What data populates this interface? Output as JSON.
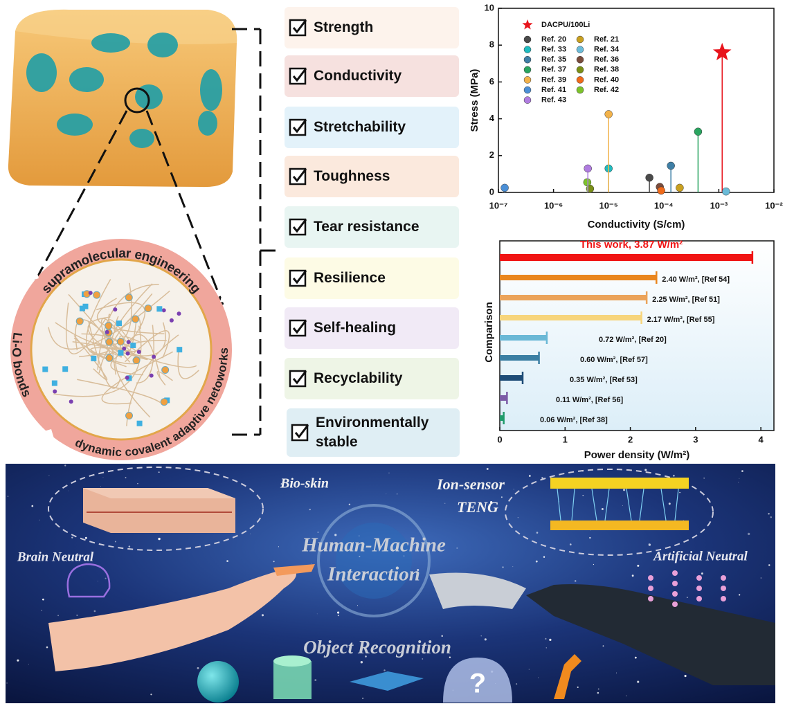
{
  "panel_left": {
    "ring_labels": {
      "top": "supramolecular engineering",
      "left": "Li-O bonds",
      "bottom": "dynamic covalent adaptive netoworks"
    }
  },
  "features": [
    "Strength",
    "Conductivity",
    "Stretchability",
    "Toughness",
    "Tear resistance",
    "Resilience",
    "Self-healing",
    "Recyclability",
    "Environmentally stable"
  ],
  "chart_data": [
    {
      "type": "lollipop",
      "xlabel": "Conductivity (S/cm)",
      "ylabel": "Stress (MPa)",
      "xscale": "log",
      "xlim": [
        1e-07,
        0.01
      ],
      "xticks": [
        {
          "value": 1e-07,
          "label": "10⁻⁷"
        },
        {
          "value": 1e-06,
          "label": "10⁻⁶"
        },
        {
          "value": 1e-05,
          "label": "10⁻⁵"
        },
        {
          "value": 0.0001,
          "label": "10⁻⁴"
        },
        {
          "value": 0.001,
          "label": "10⁻³"
        },
        {
          "value": 0.01,
          "label": "10⁻²"
        }
      ],
      "ylim": [
        0,
        10
      ],
      "yticks": [
        0,
        2,
        4,
        6,
        8,
        10
      ],
      "legend": "upper left",
      "series": [
        {
          "name": "DACPU/100Li",
          "color": "#e8141c",
          "marker": "star",
          "x": [
            0.00115
          ],
          "values": [
            7.6
          ]
        },
        {
          "name": "Ref. 20",
          "color": "#4a4a4a",
          "marker": "ball",
          "x": [
            5.5e-05
          ],
          "values": [
            0.8
          ]
        },
        {
          "name": "Ref. 21",
          "color": "#c9a020",
          "marker": "ball",
          "x": [
            0.000195
          ],
          "values": [
            0.25
          ]
        },
        {
          "name": "Ref. 33",
          "color": "#1fbcc0",
          "marker": "ball",
          "x": [
            1e-05
          ],
          "values": [
            1.3
          ]
        },
        {
          "name": "Ref. 34",
          "color": "#6bbbd8",
          "marker": "ball",
          "x": [
            0.00135
          ],
          "values": [
            0.05
          ]
        },
        {
          "name": "Ref. 35",
          "color": "#3f7fa6",
          "marker": "ball",
          "x": [
            0.000135
          ],
          "values": [
            1.45
          ]
        },
        {
          "name": "Ref. 36",
          "color": "#7a4c3c",
          "marker": "ball",
          "x": [
            8.5e-05
          ],
          "values": [
            0.3
          ]
        },
        {
          "name": "Ref. 37",
          "color": "#2aa560",
          "marker": "ball",
          "x": [
            0.00042
          ],
          "values": [
            3.3
          ]
        },
        {
          "name": "Ref. 38",
          "color": "#7a8f16",
          "marker": "ball",
          "x": [
            4.6e-06
          ],
          "values": [
            0.2
          ]
        },
        {
          "name": "Ref. 39",
          "color": "#f2b24a",
          "marker": "ball",
          "x": [
            1e-05
          ],
          "values": [
            4.25
          ]
        },
        {
          "name": "Ref. 40",
          "color": "#f06a1a",
          "marker": "ball",
          "x": [
            9e-05
          ],
          "values": [
            0.1
          ]
        },
        {
          "name": "Ref. 41",
          "color": "#4b8fd6",
          "marker": "ball",
          "x": [
            1.3e-07
          ],
          "values": [
            0.25
          ]
        },
        {
          "name": "Ref. 42",
          "color": "#7cc22a",
          "marker": "ball",
          "x": [
            4.1e-06
          ],
          "values": [
            0.55
          ]
        },
        {
          "name": "Ref. 43",
          "color": "#b07ce0",
          "marker": "ball",
          "x": [
            4.2e-06
          ],
          "values": [
            1.3
          ]
        }
      ]
    },
    {
      "type": "bar",
      "orientation": "horizontal",
      "xlabel": "Power density (W/m²)",
      "ylabel": "Comparison",
      "xlim": [
        0,
        4.2
      ],
      "xticks": [
        0,
        1,
        2,
        3,
        4
      ],
      "values": [
        3.87,
        2.4,
        2.25,
        2.17,
        0.72,
        0.6,
        0.35,
        0.11,
        0.06
      ],
      "value_labels": [
        "This work, 3.87 W/m²",
        "2.40 W/m², [Ref 54]",
        "2.25 W/m², [Ref 51]",
        "2.17 W/m², [Ref 55]",
        "0.72 W/m², [Ref 20]",
        "0.60 W/m², [Ref 57]",
        "0.35 W/m², [Ref 53]",
        "0.11 W/m², [Ref 56]",
        "0.06 W/m², [Ref 38]"
      ],
      "colors": [
        "#f01414",
        "#e9861e",
        "#eba35a",
        "#f7d57c",
        "#6ab8d6",
        "#3b7fa3",
        "#1e4c77",
        "#7b5ba6",
        "#1f9a6a"
      ]
    }
  ],
  "application_panel": {
    "bio_skin": "Bio-skin",
    "ion_sensor_teng": [
      "Ion-sensor",
      "TENG"
    ],
    "brain_neutral": "Brain Neutral",
    "human_machine_interaction": [
      "Human-Machine",
      "Interaction"
    ],
    "artificial_neutral": "Artificial Neutral",
    "object_recognition": "Object Recognition"
  }
}
